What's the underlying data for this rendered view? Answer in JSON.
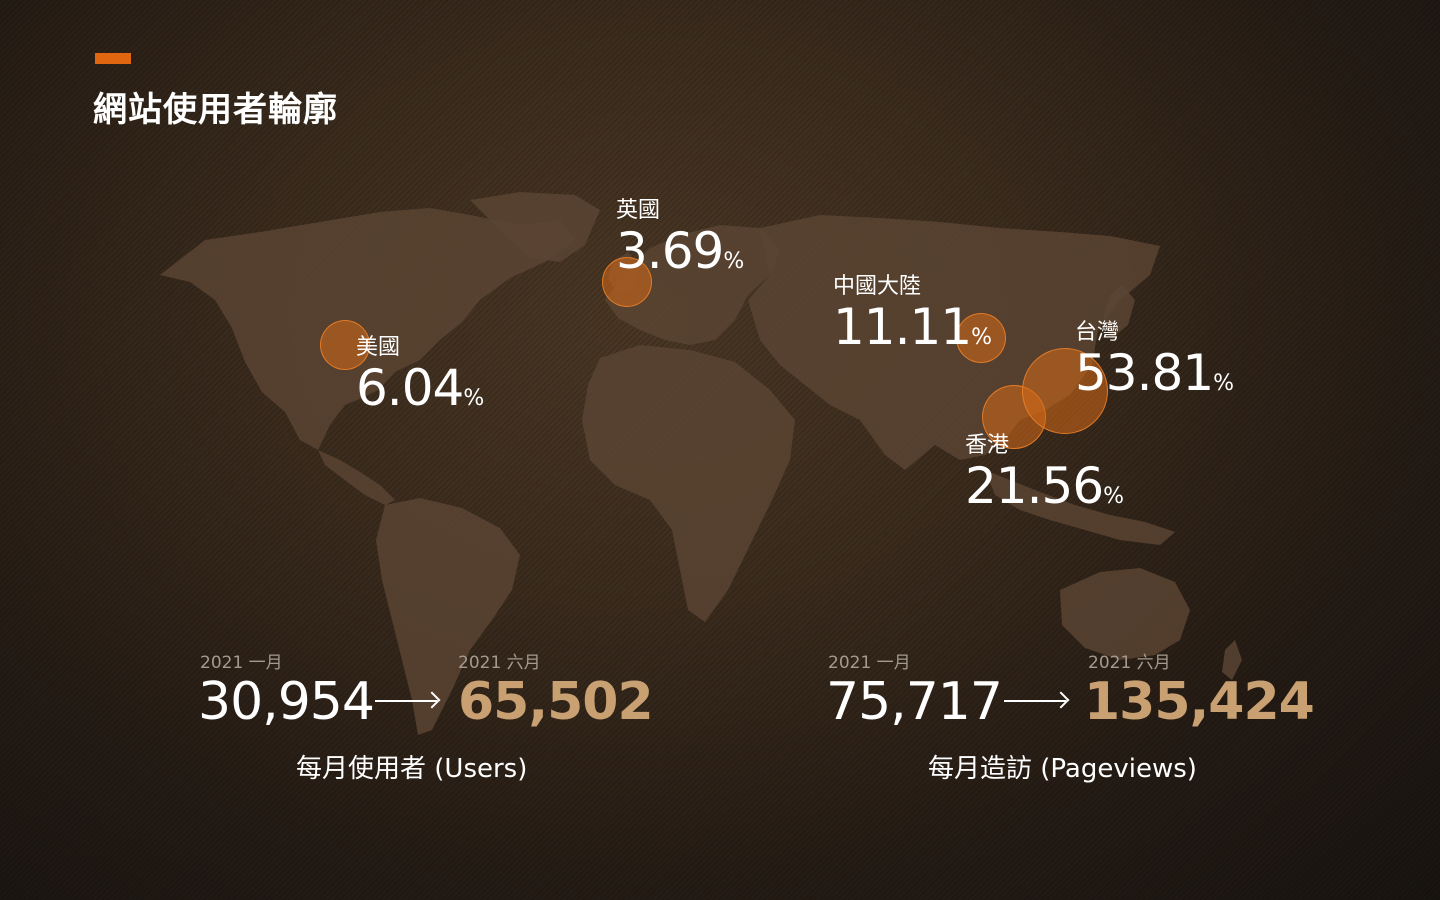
{
  "title": "網站使用者輪廓",
  "colors": {
    "accent": "#e0670f",
    "bubble": "#d66a18",
    "highlight_number": "#c9a072",
    "background": "#2e2218"
  },
  "countries": [
    {
      "name": "美國",
      "value": "6.04",
      "unit": "%"
    },
    {
      "name": "英國",
      "value": "3.69",
      "unit": "%"
    },
    {
      "name": "中國大陸",
      "value": "11.11",
      "unit": "%"
    },
    {
      "name": "台灣",
      "value": "53.81",
      "unit": "%"
    },
    {
      "name": "香港",
      "value": "21.56",
      "unit": "%"
    }
  ],
  "stats": [
    {
      "from_date": "2021 一月",
      "from_value": "30,954",
      "to_date": "2021 六月",
      "to_value": "65,502",
      "label": "每月使用者 (Users)"
    },
    {
      "from_date": "2021 一月",
      "from_value": "75,717",
      "to_date": "2021 六月",
      "to_value": "135,424",
      "label": "每月造訪 (Pageviews)"
    }
  ]
}
